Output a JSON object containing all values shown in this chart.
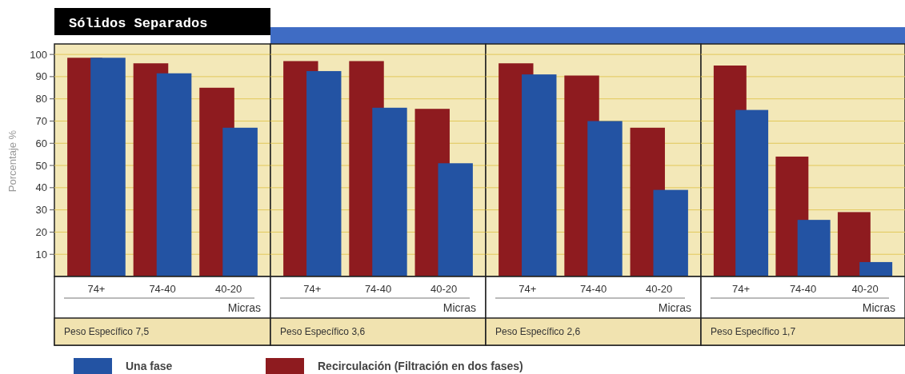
{
  "chart_data": [
    {
      "type": "bar",
      "title": "Sólidos Separados",
      "ylabel": "Porcentaje %",
      "xlabel": "Micras",
      "categories": [
        "74+",
        "74-40",
        "40-20"
      ],
      "series": [
        {
          "name": "Recirculación (Filtración en dos fases)",
          "color": "#8e1b1f",
          "values": [
            98.5,
            96,
            85
          ]
        },
        {
          "name": "Una fase",
          "color": "#2353a3",
          "values": [
            98.5,
            91.5,
            67
          ]
        }
      ],
      "ylim": [
        0,
        104
      ],
      "yticks": [
        10,
        20,
        30,
        40,
        50,
        60,
        70,
        80,
        90,
        100
      ],
      "grid": "y",
      "legend": "bottom",
      "annotations": [
        "Peso Específico 7,5"
      ]
    },
    {
      "type": "bar",
      "xlabel": "Micras",
      "categories": [
        "74+",
        "74-40",
        "40-20"
      ],
      "series": [
        {
          "color": "#8e1b1f",
          "values": [
            97,
            97,
            75.5
          ]
        },
        {
          "color": "#2353a3",
          "values": [
            92.5,
            76,
            51
          ]
        }
      ],
      "ylim": [
        0,
        104
      ],
      "yticks": [
        10,
        20,
        30,
        40,
        50,
        60,
        70,
        80,
        90,
        100
      ],
      "grid": "y",
      "tick_labels": "x",
      "annotations": [
        "Peso Específico 3,6"
      ]
    },
    {
      "type": "bar",
      "xlabel": "Micras",
      "categories": [
        "74+",
        "74-40",
        "40-20"
      ],
      "series": [
        {
          "color": "#8e1b1f",
          "values": [
            96,
            90.5,
            67
          ]
        },
        {
          "color": "#2353a3",
          "values": [
            91,
            70,
            39
          ]
        }
      ],
      "ylim": [
        0,
        104
      ],
      "yticks": [
        10,
        20,
        30,
        40,
        50,
        60,
        70,
        80,
        90,
        100
      ],
      "grid": "y",
      "tick_labels": "x",
      "annotations": [
        "Peso Específico 2,6"
      ]
    },
    {
      "type": "bar",
      "xlabel": "Micras",
      "categories": [
        "74+",
        "74-40",
        "40-20"
      ],
      "series": [
        {
          "color": "#8e1b1f",
          "values": [
            95,
            54,
            29
          ]
        },
        {
          "color": "#2353a3",
          "values": [
            75,
            25.5,
            6.5
          ]
        }
      ],
      "ylim": [
        0,
        104
      ],
      "yticks": [
        10,
        20,
        30,
        40,
        50,
        60,
        70,
        80,
        90,
        100
      ],
      "grid": "y",
      "tick_labels": "x",
      "annotations": [
        "Peso Específico 1,7"
      ]
    }
  ]
}
